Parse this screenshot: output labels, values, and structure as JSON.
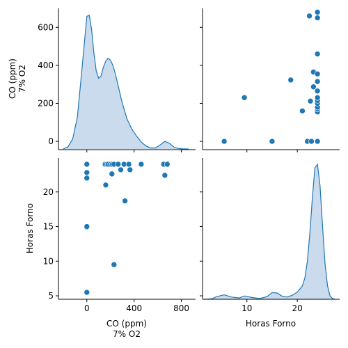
{
  "chart_data": {
    "type": "pairplot",
    "variables": [
      "CO (ppm)\n7% O2",
      "Horas Forno"
    ],
    "color": "#1f77b4",
    "kde_fill": "#c6d9ec",
    "diag": "kde",
    "offdiag": "scatter",
    "grid": false,
    "legend": "none",
    "axes": {
      "co": {
        "label_lines": [
          "CO (ppm)",
          "7% O2"
        ],
        "ticks": [
          0,
          200,
          400,
          600
        ],
        "xticks": [
          0,
          400,
          800
        ],
        "lim": [
          -240,
          920
        ]
      },
      "horas": {
        "label": "Horas Forno",
        "ticks": [
          5,
          10,
          15,
          20
        ],
        "xticks": [
          10,
          20
        ],
        "lim": [
          1.2,
          28.4
        ],
        "ylim": [
          4.5,
          24.9
        ]
      }
    },
    "points": [
      {
        "co": 0,
        "horas": 5.5
      },
      {
        "co": 0,
        "horas": 14.9
      },
      {
        "co": 0,
        "horas": 15.0
      },
      {
        "co": 0,
        "horas": 22.0
      },
      {
        "co": 0,
        "horas": 22.8
      },
      {
        "co": 0,
        "horas": 24.0
      },
      {
        "co": 230,
        "horas": 9.5
      },
      {
        "co": 323,
        "horas": 18.7
      },
      {
        "co": 160,
        "horas": 21.0
      },
      {
        "co": 212,
        "horas": 22.6
      },
      {
        "co": 287,
        "horas": 23.2
      },
      {
        "co": 365,
        "horas": 23.2
      },
      {
        "co": 660,
        "horas": 22.4
      },
      {
        "co": 155,
        "horas": 24.0
      },
      {
        "co": 170,
        "horas": 24.0
      },
      {
        "co": 180,
        "horas": 24.0
      },
      {
        "co": 200,
        "horas": 24.0
      },
      {
        "co": 215,
        "horas": 24.0
      },
      {
        "co": 230,
        "horas": 24.0
      },
      {
        "co": 265,
        "horas": 24.0
      },
      {
        "co": 315,
        "horas": 24.0
      },
      {
        "co": 355,
        "horas": 24.0
      },
      {
        "co": 460,
        "horas": 24.0
      },
      {
        "co": 650,
        "horas": 24.0
      },
      {
        "co": 680,
        "horas": 24.0
      }
    ],
    "kde_co": {
      "x": [
        -200,
        -160,
        -120,
        -80,
        -40,
        0,
        20,
        40,
        60,
        80,
        100,
        120,
        140,
        160,
        180,
        200,
        220,
        240,
        260,
        280,
        300,
        340,
        380,
        420,
        460,
        500,
        540,
        580,
        620,
        660,
        700,
        740,
        780,
        820,
        860
      ],
      "density": [
        0,
        10,
        50,
        160,
        410,
        665,
        670,
        600,
        480,
        390,
        355,
        365,
        410,
        440,
        455,
        445,
        420,
        380,
        330,
        280,
        230,
        150,
        100,
        65,
        35,
        15,
        5,
        5,
        20,
        38,
        28,
        8,
        2,
        0,
        0
      ]
    },
    "kde_horas": {
      "x": [
        1.5,
        3,
        4,
        5.5,
        7,
        8.5,
        9.5,
        11,
        12.5,
        14,
        15,
        16,
        17,
        18,
        19,
        20,
        21,
        21.5,
        22,
        22.5,
        23,
        23.5,
        24,
        24.5,
        25,
        25.5,
        26,
        26.5,
        27,
        27.5
      ],
      "density": [
        0,
        2,
        12,
        20,
        10,
        6,
        15,
        8,
        3,
        12,
        30,
        28,
        14,
        10,
        18,
        32,
        60,
        95,
        170,
        300,
        460,
        590,
        605,
        510,
        330,
        160,
        60,
        15,
        3,
        0
      ]
    }
  }
}
